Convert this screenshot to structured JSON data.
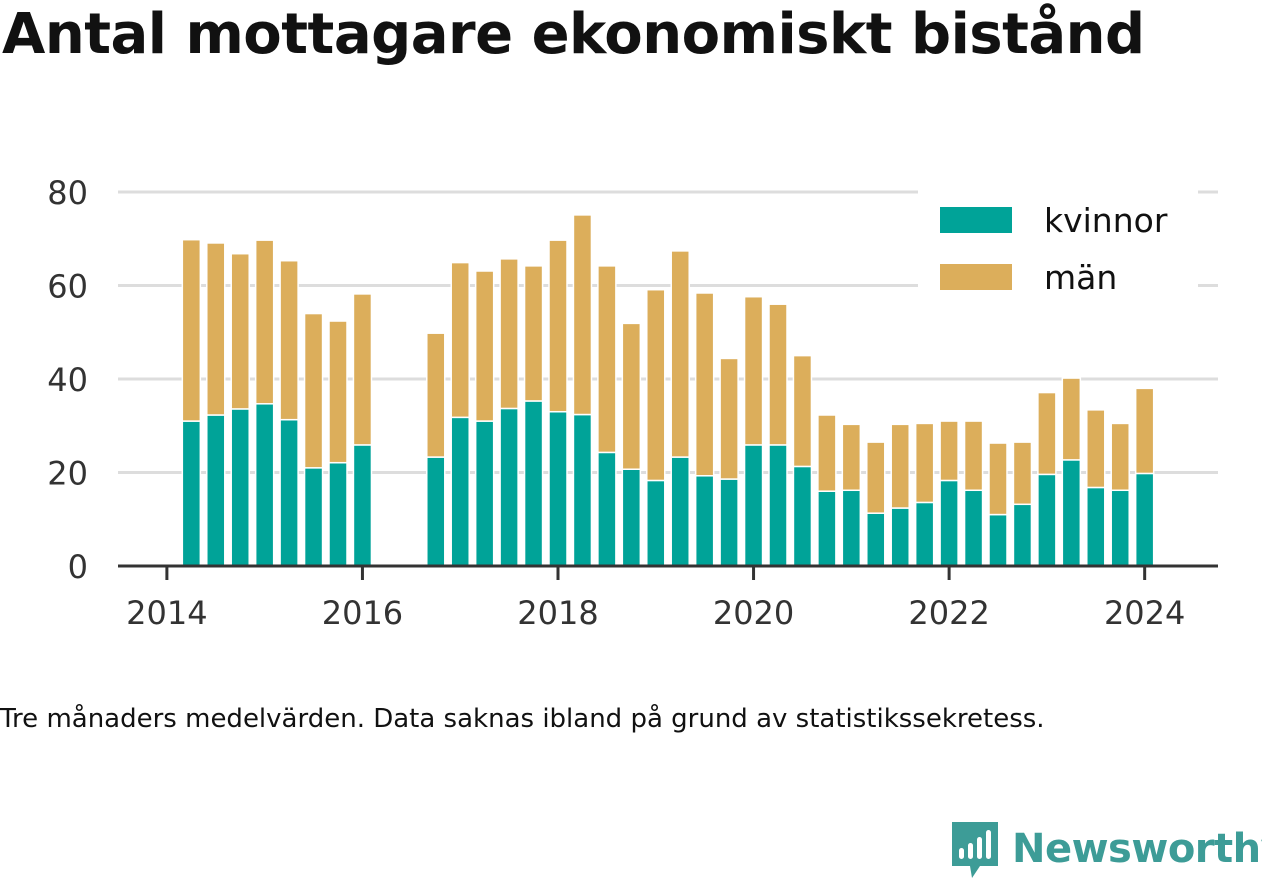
{
  "title": "Antal mottagare ekonomiskt bistånd",
  "caption": "Tre månaders medelvärden. Data saknas ibland på grund av statistikssekretess.",
  "brand": {
    "name": "Newsworthy",
    "icon": "newsworthy-logo-icon"
  },
  "colors": {
    "kvinnor": "#00a398",
    "man": "#dcae5b",
    "grid": "#dddddd",
    "axis": "#333333",
    "text": "#333333"
  },
  "chart_data": {
    "type": "bar",
    "stacked": true,
    "title": "Antal mottagare ekonomiskt bistånd",
    "xlabel": "",
    "ylabel": "",
    "ylim": [
      0,
      80
    ],
    "y_ticks": [
      0,
      20,
      40,
      60,
      80
    ],
    "x_ticks": [
      2014,
      2016,
      2018,
      2020,
      2022,
      2024
    ],
    "xlim": [
      2013.5,
      2024.75
    ],
    "grid": true,
    "legend": "top-right",
    "x": [
      2014.25,
      2014.5,
      2014.75,
      2015.0,
      2015.25,
      2015.5,
      2015.75,
      2016.0,
      2016.75,
      2017.0,
      2017.25,
      2017.5,
      2017.75,
      2018.0,
      2018.25,
      2018.5,
      2018.75,
      2019.0,
      2019.25,
      2019.5,
      2019.75,
      2020.0,
      2020.25,
      2020.5,
      2020.75,
      2021.0,
      2021.25,
      2021.5,
      2021.75,
      2022.0,
      2022.25,
      2022.5,
      2022.75,
      2023.0,
      2023.25,
      2023.5,
      2023.75,
      2024.0
    ],
    "series": [
      {
        "name": "kvinnor",
        "color": "#00a398",
        "values": [
          31,
          32.3,
          33.6,
          34.7,
          31.3,
          21,
          22.1,
          25.9,
          23.3,
          31.8,
          31,
          33.7,
          35.3,
          33,
          32.4,
          24.3,
          20.7,
          18.3,
          23.3,
          19.3,
          18.6,
          25.9,
          25.9,
          21.3,
          16,
          16.2,
          11.3,
          12.4,
          13.6,
          18.3,
          16.2,
          11,
          13.2,
          19.6,
          22.7,
          16.8,
          16.2,
          19.8
        ]
      },
      {
        "name": "män",
        "color": "#dcae5b",
        "values": [
          38.8,
          36.8,
          33.2,
          35,
          34,
          33,
          30.3,
          32.3,
          26.5,
          33.1,
          32.1,
          32,
          28.9,
          36.7,
          42.7,
          39.9,
          31.2,
          40.8,
          44.1,
          39.1,
          25.8,
          31.7,
          30.1,
          23.7,
          16.3,
          14.1,
          15.2,
          17.9,
          16.9,
          12.7,
          14.8,
          15.3,
          13.3,
          17.5,
          17.5,
          16.6,
          14.3,
          18.2
        ]
      }
    ]
  }
}
